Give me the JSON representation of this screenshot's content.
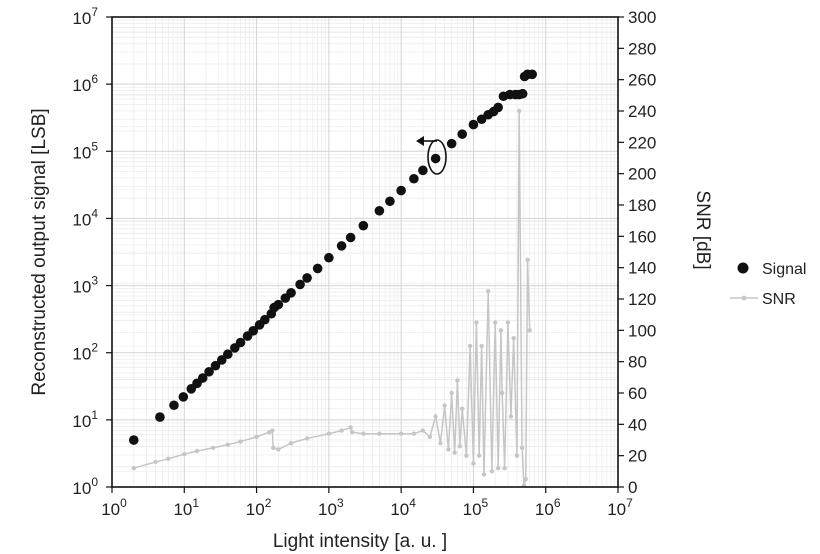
{
  "chart_data": {
    "type": "scatter",
    "xlabel": "Light intensity [a. u. ]",
    "ylabel_left": "Reconstructed output signal [LSB]",
    "ylabel_right": "SNR [dB]",
    "x_scale": "log",
    "y_left_scale": "log",
    "y_right_scale": "linear",
    "xlim": [
      1,
      10000000
    ],
    "ylim_left": [
      1,
      10000000
    ],
    "ylim_right": [
      0,
      300
    ],
    "x_ticks": [
      {
        "base": "10",
        "exp": "0"
      },
      {
        "base": "10",
        "exp": "1"
      },
      {
        "base": "10",
        "exp": "2"
      },
      {
        "base": "10",
        "exp": "3"
      },
      {
        "base": "10",
        "exp": "4"
      },
      {
        "base": "10",
        "exp": "5"
      },
      {
        "base": "10",
        "exp": "6"
      },
      {
        "base": "10",
        "exp": "7"
      }
    ],
    "y_left_ticks": [
      {
        "base": "10",
        "exp": "0"
      },
      {
        "base": "10",
        "exp": "1"
      },
      {
        "base": "10",
        "exp": "2"
      },
      {
        "base": "10",
        "exp": "3"
      },
      {
        "base": "10",
        "exp": "4"
      },
      {
        "base": "10",
        "exp": "5"
      },
      {
        "base": "10",
        "exp": "6"
      },
      {
        "base": "10",
        "exp": "7"
      }
    ],
    "y_right_ticks": [
      "0",
      "20",
      "40",
      "60",
      "80",
      "100",
      "120",
      "140",
      "160",
      "180",
      "200",
      "220",
      "240",
      "260",
      "280",
      "300"
    ],
    "grid": true,
    "legend_position": "right",
    "series": [
      {
        "name": "Signal",
        "axis": "left",
        "marker": "filled-circle",
        "color": "#111111",
        "points": [
          [
            2,
            5
          ],
          [
            4.6,
            11
          ],
          [
            7.2,
            16.5
          ],
          [
            9.7,
            22
          ],
          [
            12.5,
            29
          ],
          [
            15,
            35
          ],
          [
            18,
            42
          ],
          [
            22,
            52
          ],
          [
            27,
            64
          ],
          [
            33,
            78
          ],
          [
            40,
            95
          ],
          [
            50,
            118
          ],
          [
            60,
            142
          ],
          [
            75,
            177
          ],
          [
            90,
            212
          ],
          [
            110,
            260
          ],
          [
            130,
            310
          ],
          [
            160,
            380
          ],
          [
            175,
            470
          ],
          [
            200,
            520
          ],
          [
            250,
            650
          ],
          [
            300,
            780
          ],
          [
            400,
            1040
          ],
          [
            500,
            1300
          ],
          [
            700,
            1800
          ],
          [
            1000,
            2600
          ],
          [
            1500,
            3900
          ],
          [
            2000,
            5200
          ],
          [
            3000,
            7800
          ],
          [
            5000,
            13000
          ],
          [
            7000,
            18000
          ],
          [
            10000,
            26000
          ],
          [
            15000,
            39000
          ],
          [
            20000,
            52000
          ],
          [
            30000,
            78000
          ],
          [
            50000,
            130000
          ],
          [
            70000,
            180000
          ],
          [
            100000,
            250000
          ],
          [
            130000,
            300000
          ],
          [
            160000,
            350000
          ],
          [
            190000,
            390000
          ],
          [
            220000,
            450000
          ],
          [
            260000,
            660000
          ],
          [
            320000,
            700000
          ],
          [
            380000,
            700000
          ],
          [
            430000,
            700000
          ],
          [
            480000,
            720000
          ],
          [
            510000,
            1300000
          ],
          [
            560000,
            1400000
          ],
          [
            650000,
            1400000
          ]
        ]
      },
      {
        "name": "SNR",
        "axis": "right",
        "marker": "small-dot-line",
        "color": "#c6c6c6",
        "points": [
          [
            2,
            12
          ],
          [
            4,
            16
          ],
          [
            6,
            18
          ],
          [
            10,
            21
          ],
          [
            15,
            23
          ],
          [
            25,
            25
          ],
          [
            40,
            27
          ],
          [
            60,
            29
          ],
          [
            100,
            32
          ],
          [
            150,
            35
          ],
          [
            165,
            36
          ],
          [
            170,
            25
          ],
          [
            200,
            24
          ],
          [
            300,
            28
          ],
          [
            500,
            31
          ],
          [
            1000,
            34
          ],
          [
            1500,
            36
          ],
          [
            2000,
            38
          ],
          [
            2100,
            35
          ],
          [
            3000,
            34
          ],
          [
            5000,
            34
          ],
          [
            10000,
            34
          ],
          [
            15000,
            34
          ],
          [
            20000,
            36
          ],
          [
            25000,
            32
          ],
          [
            30000,
            45
          ],
          [
            35000,
            28
          ],
          [
            40000,
            52
          ],
          [
            45000,
            24
          ],
          [
            50000,
            60
          ],
          [
            55000,
            22
          ],
          [
            60000,
            68
          ],
          [
            65000,
            26
          ],
          [
            70000,
            50
          ],
          [
            80000,
            20
          ],
          [
            90000,
            90
          ],
          [
            100000,
            15
          ],
          [
            110000,
            105
          ],
          [
            120000,
            20
          ],
          [
            130000,
            90
          ],
          [
            140000,
            8
          ],
          [
            160000,
            125
          ],
          [
            180000,
            10
          ],
          [
            200000,
            105
          ],
          [
            220000,
            12
          ],
          [
            240000,
            100
          ],
          [
            250000,
            60
          ],
          [
            270000,
            12
          ],
          [
            300000,
            105
          ],
          [
            330000,
            45
          ],
          [
            360000,
            95
          ],
          [
            400000,
            20
          ],
          [
            430000,
            240
          ],
          [
            470000,
            25
          ],
          [
            500000,
            1
          ],
          [
            530000,
            5
          ],
          [
            560000,
            145
          ],
          [
            600000,
            100
          ]
        ]
      }
    ],
    "annotation": "curved arrow pointing left toward the left axis (Signal)"
  },
  "legend": {
    "signal_label": "Signal",
    "snr_label": "SNR"
  }
}
